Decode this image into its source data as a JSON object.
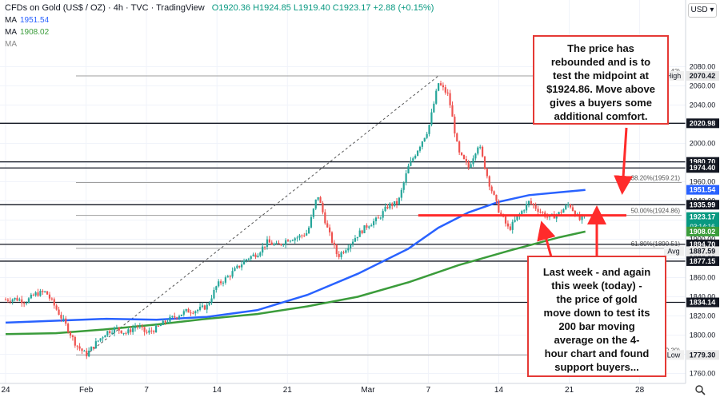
{
  "header": {
    "symbol": "CFDs on Gold (US$ / OZ)",
    "interval": "4h",
    "source": "TVC",
    "brand": "TradingView",
    "ohlc": "O1920.36 H1924.85 L1919.40 C1923.17 +2.88 (+0.15%)"
  },
  "indicators": [
    {
      "label": "MA",
      "value": "1951.54",
      "color": "#2962ff"
    },
    {
      "label": "MA",
      "value": "1908.02",
      "color": "#3b9c3b"
    },
    {
      "label": "MA",
      "value": "",
      "color": "#888888"
    }
  ],
  "currency": "USD",
  "annotations": {
    "top": [
      "The price has",
      "rebounded and is to",
      "test the midpoint at",
      "$1924.86. Move above",
      "gives a buyers some",
      "additional comfort."
    ],
    "bottom": [
      "Last week - and again",
      "this week (today) -",
      "the price of gold",
      "move down to test its",
      "200 bar moving",
      "average on the 4-",
      "hour chart and found",
      "support buyers..."
    ]
  },
  "chart_data": {
    "type": "candlestick",
    "title": "CFDs on Gold (US$ / OZ)",
    "ylim": [
      1750,
      2100
    ],
    "y_ticks": [
      1760,
      1780,
      1800,
      1820,
      1840,
      1860,
      1880,
      1900,
      1920,
      1940,
      1960,
      1980,
      2000,
      2020,
      2040,
      2060,
      2080
    ],
    "x_ticks": [
      "24",
      "Feb",
      "7",
      "14",
      "21",
      "Mar",
      "7",
      "14",
      "21",
      "28"
    ],
    "x_tick_days": [
      0,
      8,
      14,
      21,
      28,
      36,
      42,
      49,
      56,
      63
    ],
    "x_range_days": [
      0,
      66
    ],
    "horizontal_levels": [
      2020.98,
      1980.7,
      1974.4,
      1935.99,
      1894.7,
      1877.15,
      1834.14
    ],
    "fib_levels": [
      {
        "label": "0.00%(2070.42)",
        "value": 2070.42
      },
      {
        "label": "38.20%(1959.21)",
        "value": 1959.21
      },
      {
        "label": "50.00%(1924.86)",
        "value": 1924.86
      },
      {
        "label": "61.80%(1890.51)",
        "value": 1890.51
      },
      {
        "label": "100.00%(1779.30)",
        "value": 1779.3
      }
    ],
    "price_tags": [
      {
        "label": "High",
        "value": "2070.42",
        "y": 2070.42,
        "kind": "plain"
      },
      {
        "label": "",
        "value": "2020.98",
        "y": 2020.98,
        "kind": "dark"
      },
      {
        "label": "",
        "value": "1980.70",
        "y": 1980.7,
        "kind": "dark"
      },
      {
        "label": "",
        "value": "1974.40",
        "y": 1974.4,
        "kind": "dark"
      },
      {
        "label": "",
        "value": "1951.54",
        "y": 1951.54,
        "kind": "blue"
      },
      {
        "label": "",
        "value": "1935.99",
        "y": 1935.99,
        "kind": "dark"
      },
      {
        "label": "",
        "value": "1923.17",
        "y": 1923.17,
        "kind": "green",
        "sub": "03:14:16"
      },
      {
        "label": "",
        "value": "1908.02",
        "y": 1908.02,
        "kind": "lightgreen"
      },
      {
        "label": "",
        "value": "1894.70",
        "y": 1894.7,
        "kind": "dark"
      },
      {
        "label": "Avg",
        "value": "1887.59",
        "y": 1887.59,
        "kind": "plain"
      },
      {
        "label": "",
        "value": "1877.15",
        "y": 1877.15,
        "kind": "dark"
      },
      {
        "label": "",
        "value": "1834.14",
        "y": 1834.14,
        "kind": "dark"
      },
      {
        "label": "Low",
        "value": "1779.30",
        "y": 1779.3,
        "kind": "plain"
      }
    ],
    "price_path": [
      [
        0,
        1837
      ],
      [
        1,
        1838
      ],
      [
        2,
        1835
      ],
      [
        3,
        1843
      ],
      [
        4,
        1845
      ],
      [
        5,
        1828
      ],
      [
        6,
        1810
      ],
      [
        7,
        1790
      ],
      [
        8,
        1779.3
      ],
      [
        9,
        1792
      ],
      [
        10,
        1803
      ],
      [
        11,
        1807
      ],
      [
        12,
        1802
      ],
      [
        13,
        1810
      ],
      [
        14,
        1802
      ],
      [
        15,
        1807
      ],
      [
        16,
        1815
      ],
      [
        17,
        1820
      ],
      [
        18,
        1825
      ],
      [
        19,
        1826
      ],
      [
        20,
        1830
      ],
      [
        21,
        1852
      ],
      [
        22,
        1860
      ],
      [
        23,
        1870
      ],
      [
        24,
        1880
      ],
      [
        25,
        1885
      ],
      [
        26,
        1897
      ],
      [
        27,
        1893
      ],
      [
        28,
        1900
      ],
      [
        29,
        1902
      ],
      [
        30,
        1907
      ],
      [
        31,
        1947
      ],
      [
        32,
        1910
      ],
      [
        33,
        1882
      ],
      [
        34,
        1893
      ],
      [
        35,
        1905
      ],
      [
        36,
        1915
      ],
      [
        37,
        1921
      ],
      [
        38,
        1935
      ],
      [
        39,
        1938
      ],
      [
        40,
        1975
      ],
      [
        41,
        1995
      ],
      [
        42,
        2015
      ],
      [
        43,
        2063
      ],
      [
        44,
        2050
      ],
      [
        45,
        1990
      ],
      [
        46,
        1975
      ],
      [
        47,
        2000
      ],
      [
        48,
        1960
      ],
      [
        49,
        1930
      ],
      [
        50,
        1910
      ],
      [
        51,
        1925
      ],
      [
        52,
        1939
      ],
      [
        53,
        1930
      ],
      [
        54,
        1922
      ],
      [
        55,
        1927
      ],
      [
        56,
        1937
      ],
      [
        57,
        1920
      ],
      [
        57.6,
        1923.17
      ]
    ],
    "series": [
      {
        "name": "MA",
        "color": "#2962ff",
        "points": [
          [
            0,
            1813
          ],
          [
            5,
            1815
          ],
          [
            10,
            1817
          ],
          [
            15,
            1816
          ],
          [
            20,
            1819
          ],
          [
            25,
            1826
          ],
          [
            30,
            1842
          ],
          [
            35,
            1864
          ],
          [
            40,
            1890
          ],
          [
            43,
            1912
          ],
          [
            46,
            1928
          ],
          [
            49,
            1939
          ],
          [
            52,
            1946
          ],
          [
            55,
            1949
          ],
          [
            57.6,
            1951.54
          ]
        ]
      },
      {
        "name": "MA",
        "color": "#3b9c3b",
        "points": [
          [
            0,
            1801
          ],
          [
            5,
            1802
          ],
          [
            10,
            1806
          ],
          [
            15,
            1811
          ],
          [
            20,
            1817
          ],
          [
            25,
            1822
          ],
          [
            30,
            1830
          ],
          [
            35,
            1840
          ],
          [
            40,
            1855
          ],
          [
            45,
            1873
          ],
          [
            50,
            1888
          ],
          [
            55,
            1902
          ],
          [
            57.6,
            1908.02
          ]
        ]
      }
    ],
    "trend_line": [
      [
        8,
        1779.3
      ],
      [
        43,
        2070.42
      ]
    ],
    "midpoint_marker": {
      "from_day": 41,
      "to_day": 58.5,
      "value": 1924.86
    },
    "arrows": [
      {
        "from_day": 58,
        "from_value": 1994,
        "to_day": 57.6,
        "to_value": 1925
      },
      {
        "from_day": 46,
        "from_value": 1868,
        "to_day": 50.5,
        "to_value": 1893
      },
      {
        "from_day": 57.6,
        "from_value": 1868,
        "to_day": 57.6,
        "to_value": 1908
      }
    ]
  }
}
